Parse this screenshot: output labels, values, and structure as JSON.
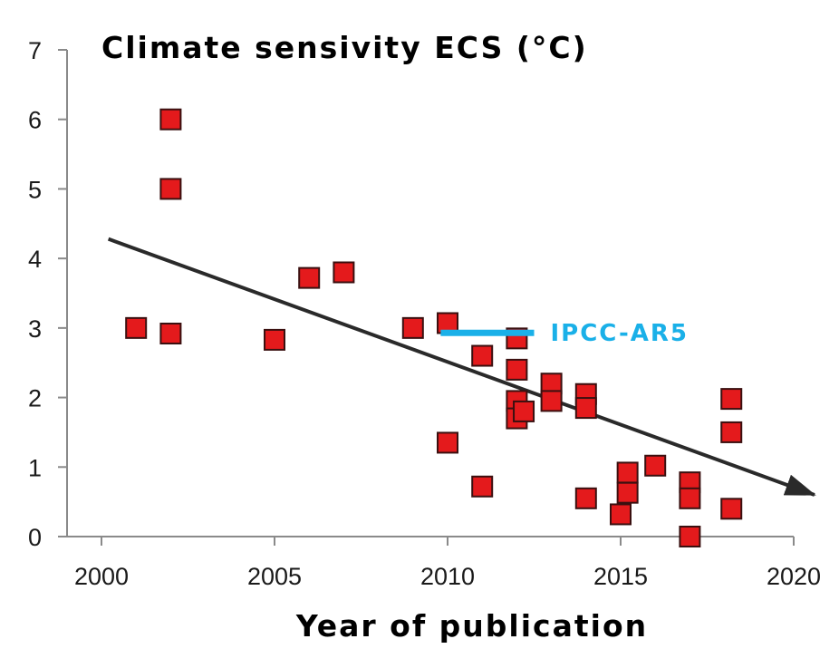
{
  "chart_data": {
    "type": "scatter",
    "title": "Climate sensivity ECS (°C)",
    "xlabel": "Year of publication",
    "ylabel": "",
    "xlim": [
      2000,
      2020
    ],
    "ylim": [
      0,
      7
    ],
    "x_ticks": [
      "2000",
      "2005",
      "2010",
      "2015",
      "2020"
    ],
    "y_ticks": [
      "0",
      "1",
      "2",
      "3",
      "4",
      "5",
      "6",
      "7"
    ],
    "grid": false,
    "marker": "square",
    "marker_color": "#e41a1c",
    "series": [
      {
        "points": [
          {
            "x": 2001,
            "y": 3.0
          },
          {
            "x": 2002,
            "y": 6.0
          },
          {
            "x": 2002,
            "y": 5.0
          },
          {
            "x": 2002,
            "y": 2.92
          },
          {
            "x": 2005,
            "y": 2.83
          },
          {
            "x": 2006,
            "y": 3.72
          },
          {
            "x": 2007,
            "y": 3.8
          },
          {
            "x": 2009,
            "y": 3.0
          },
          {
            "x": 2010,
            "y": 3.07
          },
          {
            "x": 2010,
            "y": 1.35
          },
          {
            "x": 2011,
            "y": 2.6
          },
          {
            "x": 2011,
            "y": 0.72
          },
          {
            "x": 2012,
            "y": 2.85
          },
          {
            "x": 2012,
            "y": 2.4
          },
          {
            "x": 2012,
            "y": 1.95
          },
          {
            "x": 2012,
            "y": 1.7
          },
          {
            "x": 2012.2,
            "y": 1.8
          },
          {
            "x": 2013,
            "y": 2.2
          },
          {
            "x": 2013,
            "y": 1.95
          },
          {
            "x": 2014,
            "y": 2.05
          },
          {
            "x": 2014,
            "y": 1.85
          },
          {
            "x": 2014,
            "y": 0.55
          },
          {
            "x": 2015,
            "y": 0.32
          },
          {
            "x": 2015.2,
            "y": 0.92
          },
          {
            "x": 2015.2,
            "y": 0.63
          },
          {
            "x": 2016,
            "y": 1.02
          },
          {
            "x": 2017,
            "y": 0.78
          },
          {
            "x": 2017,
            "y": 0.55
          },
          {
            "x": 2017,
            "y": 0.0
          },
          {
            "x": 2018.2,
            "y": 1.98
          },
          {
            "x": 2018.2,
            "y": 1.5
          },
          {
            "x": 2018.2,
            "y": 0.4
          }
        ]
      }
    ],
    "trend_line": {
      "color": "#2a2a2a",
      "from": {
        "x": 2000.2,
        "y": 4.28
      },
      "to": {
        "x": 2020.6,
        "y": 0.6
      },
      "arrow": true
    },
    "annotations": [
      {
        "text": "IPCC-AR5",
        "color": "#1ab0e8",
        "line_from": {
          "x": 2009.8,
          "y": 2.93
        },
        "line_to": {
          "x": 2012.5,
          "y": 2.93
        }
      }
    ]
  }
}
